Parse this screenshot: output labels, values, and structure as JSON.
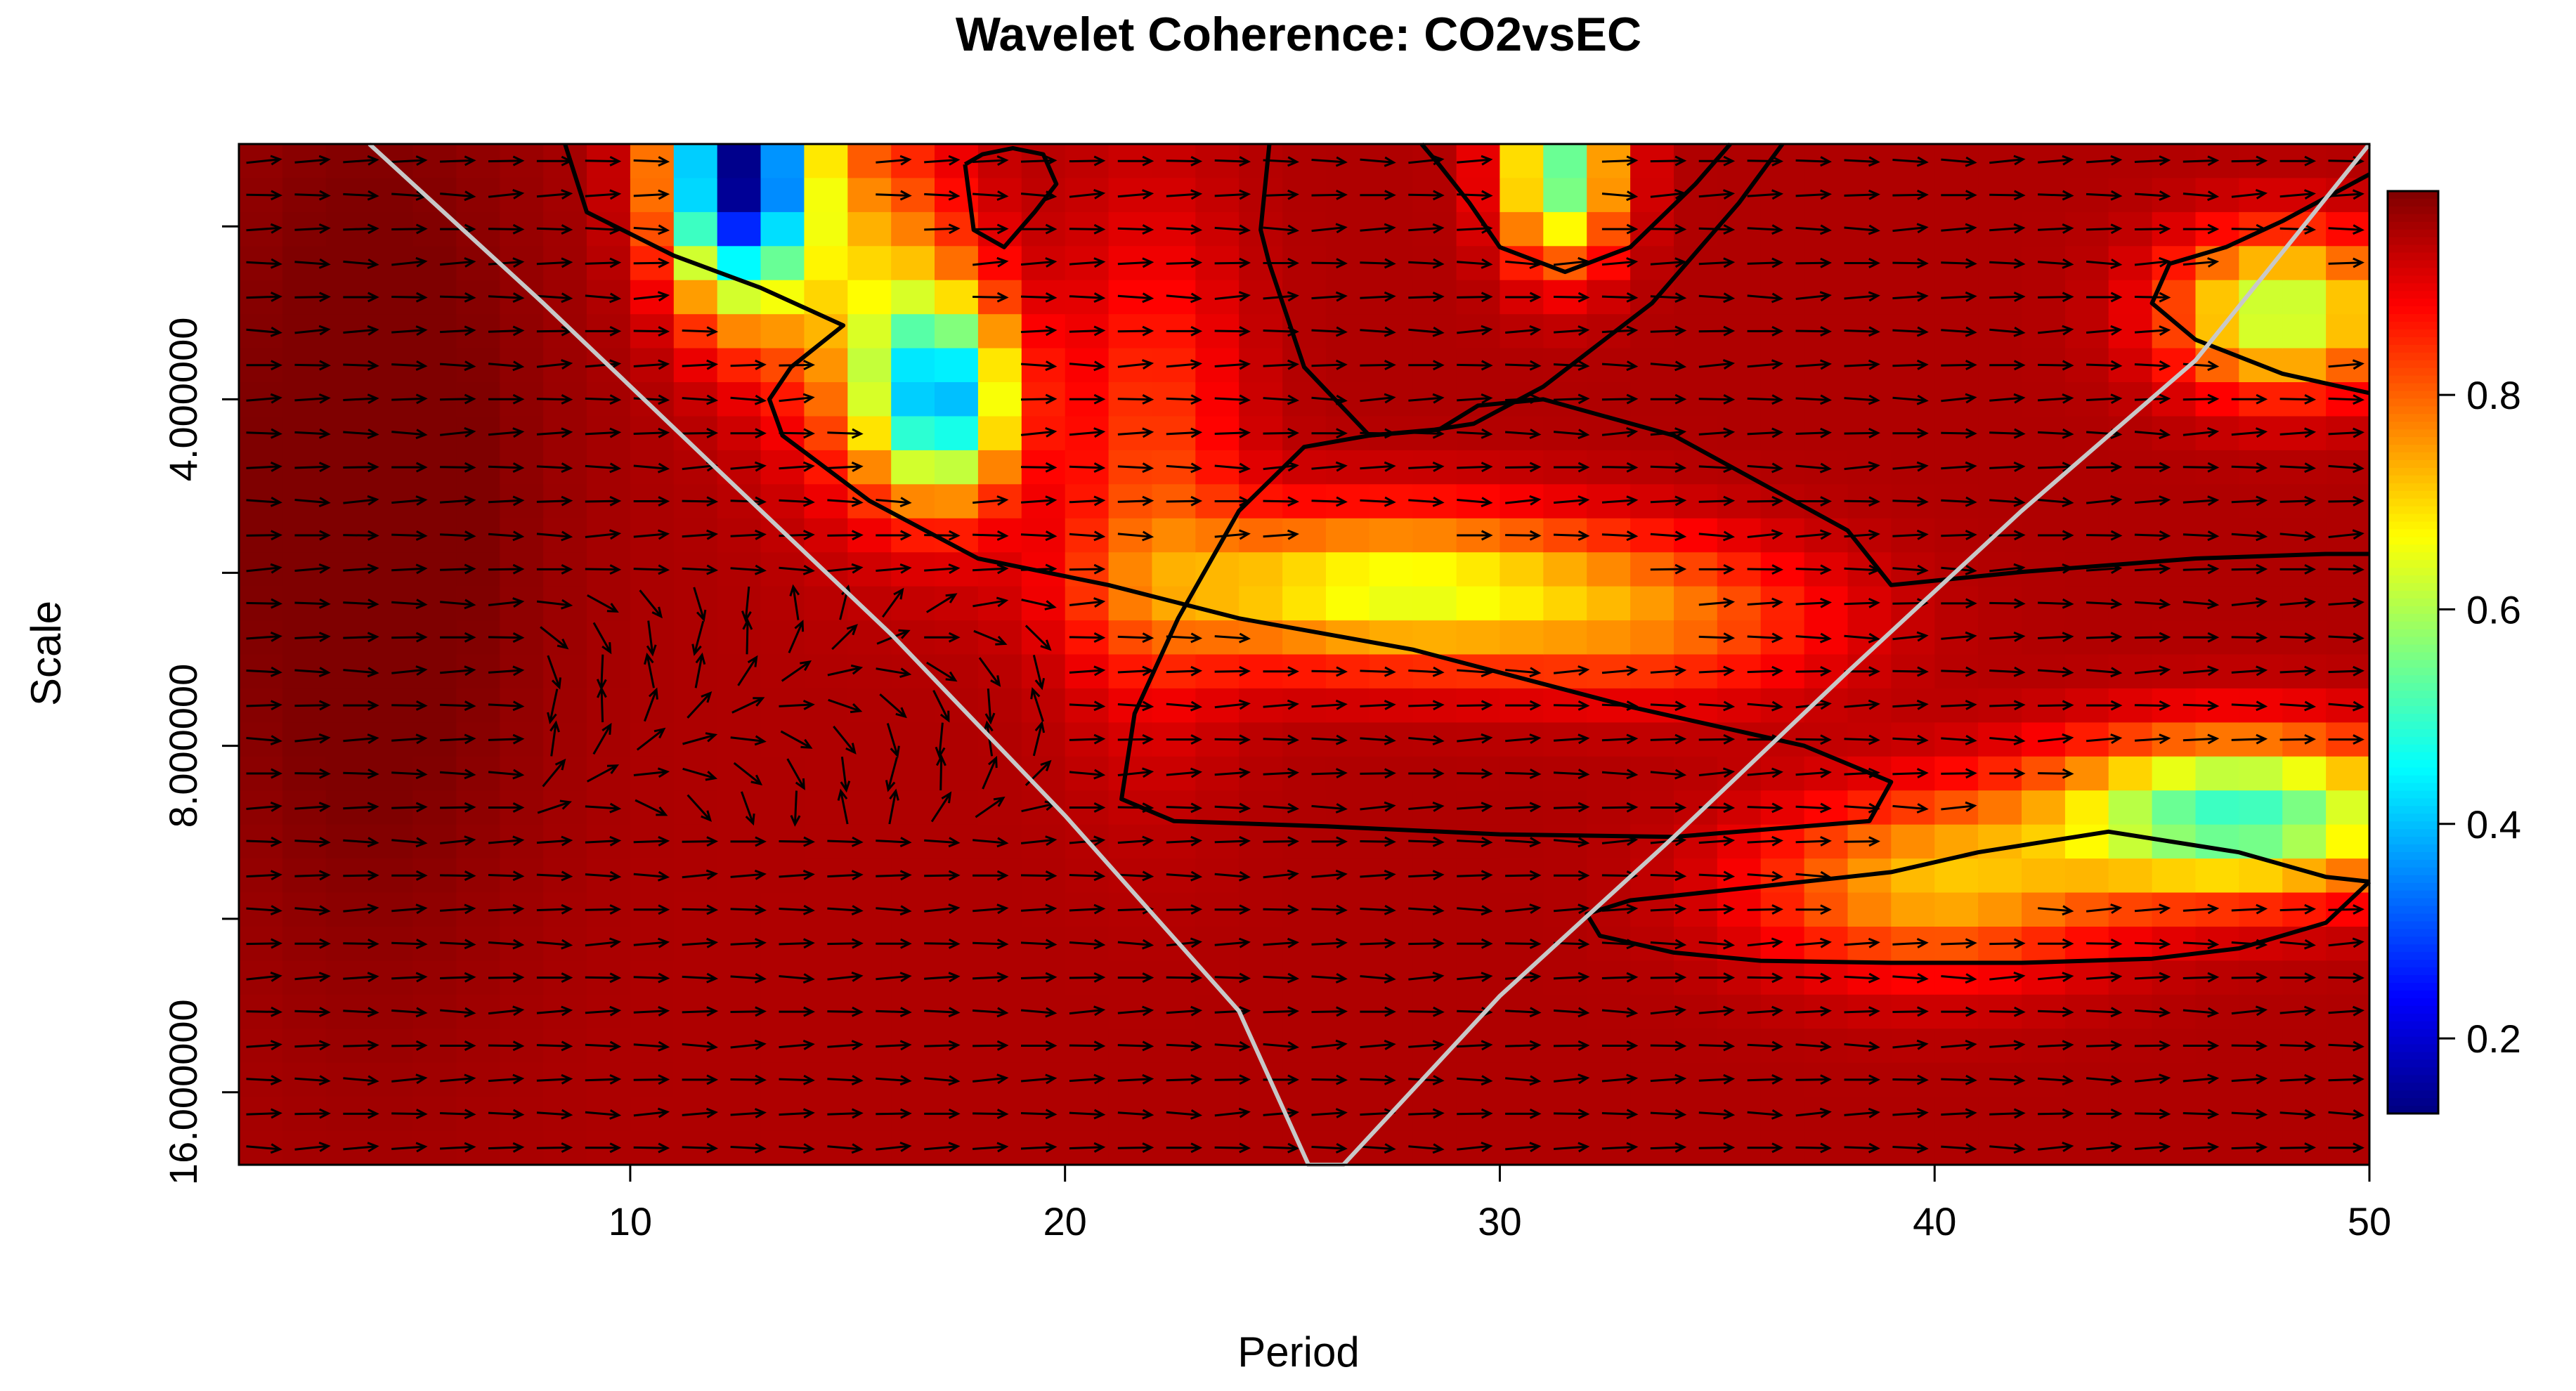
{
  "chart_data": {
    "type": "heatmap",
    "title": "Wavelet Coherence: CO2vsEC",
    "xlabel": "Period",
    "ylabel": "Scale",
    "xlim": [
      1,
      50
    ],
    "x_ticks": [
      10,
      20,
      30,
      40,
      50
    ],
    "x_tick_labels": [
      "10",
      "20",
      "30",
      "40",
      "50"
    ],
    "y_scale": "log2",
    "ylim": [
      2.4,
      18.5
    ],
    "y_ticks": [
      4,
      8,
      16
    ],
    "y_tick_labels": [
      "4.000000",
      "8.000000",
      "16.000000"
    ],
    "y_minor_ticks": [
      2.83,
      5.66,
      11.31
    ],
    "colorbar": {
      "range": [
        0.13,
        0.99
      ],
      "ticks": [
        0.2,
        0.4,
        0.6,
        0.8
      ],
      "tick_labels": [
        "0.2",
        "0.4",
        "0.6",
        "0.8"
      ],
      "colors": [
        "#00007f",
        "#0000ff",
        "#007fff",
        "#00ffff",
        "#7fff7f",
        "#ffff00",
        "#ff7f00",
        "#ff0000",
        "#7f0000"
      ]
    },
    "cone_of_influence": {
      "color": "#c8c8c8",
      "x": [
        4.0,
        8.0,
        12.0,
        16.0,
        20.0,
        24.0,
        25.6,
        26.4,
        30.0,
        34.0,
        38.0,
        42.0,
        46.0,
        50.0
      ],
      "y": [
        2.4,
        3.3,
        4.6,
        6.4,
        9.2,
        13.6,
        18.5,
        18.5,
        13.2,
        9.6,
        6.9,
        5.0,
        3.7,
        2.4
      ]
    },
    "significance_contours": [
      {
        "x": [
          8.5,
          9,
          11,
          13,
          14.9,
          13.7,
          13.2,
          13.5,
          15.5,
          18,
          21,
          24,
          28,
          33,
          37,
          39,
          38.5,
          34,
          30,
          26,
          22.5,
          21.3,
          21.6,
          22.6,
          24,
          25.5,
          27,
          28.6,
          29.5,
          31,
          34,
          38,
          39,
          42,
          46,
          49,
          50
        ],
        "y": [
          2.4,
          2.75,
          3.0,
          3.2,
          3.45,
          3.75,
          4.0,
          4.3,
          4.9,
          5.5,
          5.8,
          6.2,
          6.6,
          7.4,
          8.0,
          8.6,
          9.3,
          9.6,
          9.55,
          9.4,
          9.3,
          8.9,
          7.5,
          6.2,
          5.0,
          4.4,
          4.3,
          4.25,
          4.05,
          4.0,
          4.3,
          5.2,
          5.8,
          5.65,
          5.5,
          5.45,
          5.45
        ]
      },
      {
        "x": [
          24.7,
          24.5,
          24.7,
          25.5,
          27,
          28.5,
          29.4,
          31,
          33.5,
          35.5,
          36.5
        ],
        "y": [
          2.4,
          2.85,
          3.05,
          3.75,
          4.3,
          4.25,
          4.2,
          3.9,
          3.3,
          2.7,
          2.4
        ],
        "note_skip": true
      },
      {
        "x": [
          35.3,
          34.5,
          33,
          31.5,
          30,
          29.3,
          28.6,
          28.2
        ],
        "y": [
          2.4,
          2.6,
          2.95,
          3.1,
          2.95,
          2.7,
          2.5,
          2.4
        ]
      },
      {
        "x": [
          17.7,
          17.9,
          18.6,
          19.3,
          19.8,
          19.5,
          18.8,
          18.1,
          17.7
        ],
        "y": [
          2.5,
          2.85,
          2.95,
          2.75,
          2.6,
          2.45,
          2.42,
          2.45,
          2.5
        ]
      },
      {
        "x": [
          50,
          48,
          46,
          45,
          45.4,
          46.7,
          48,
          50
        ],
        "y": [
          3.95,
          3.8,
          3.55,
          3.3,
          3.05,
          2.95,
          2.8,
          2.55
        ]
      },
      {
        "x": [
          50,
          49,
          47,
          45,
          42,
          39,
          36,
          34,
          32.3,
          32.0,
          33,
          36,
          39,
          41,
          44,
          47,
          49,
          50
        ],
        "y": [
          10.5,
          11.4,
          12.0,
          12.25,
          12.35,
          12.35,
          12.3,
          12.1,
          11.7,
          11.2,
          10.9,
          10.6,
          10.3,
          9.9,
          9.5,
          9.9,
          10.4,
          10.5
        ]
      }
    ]
  }
}
